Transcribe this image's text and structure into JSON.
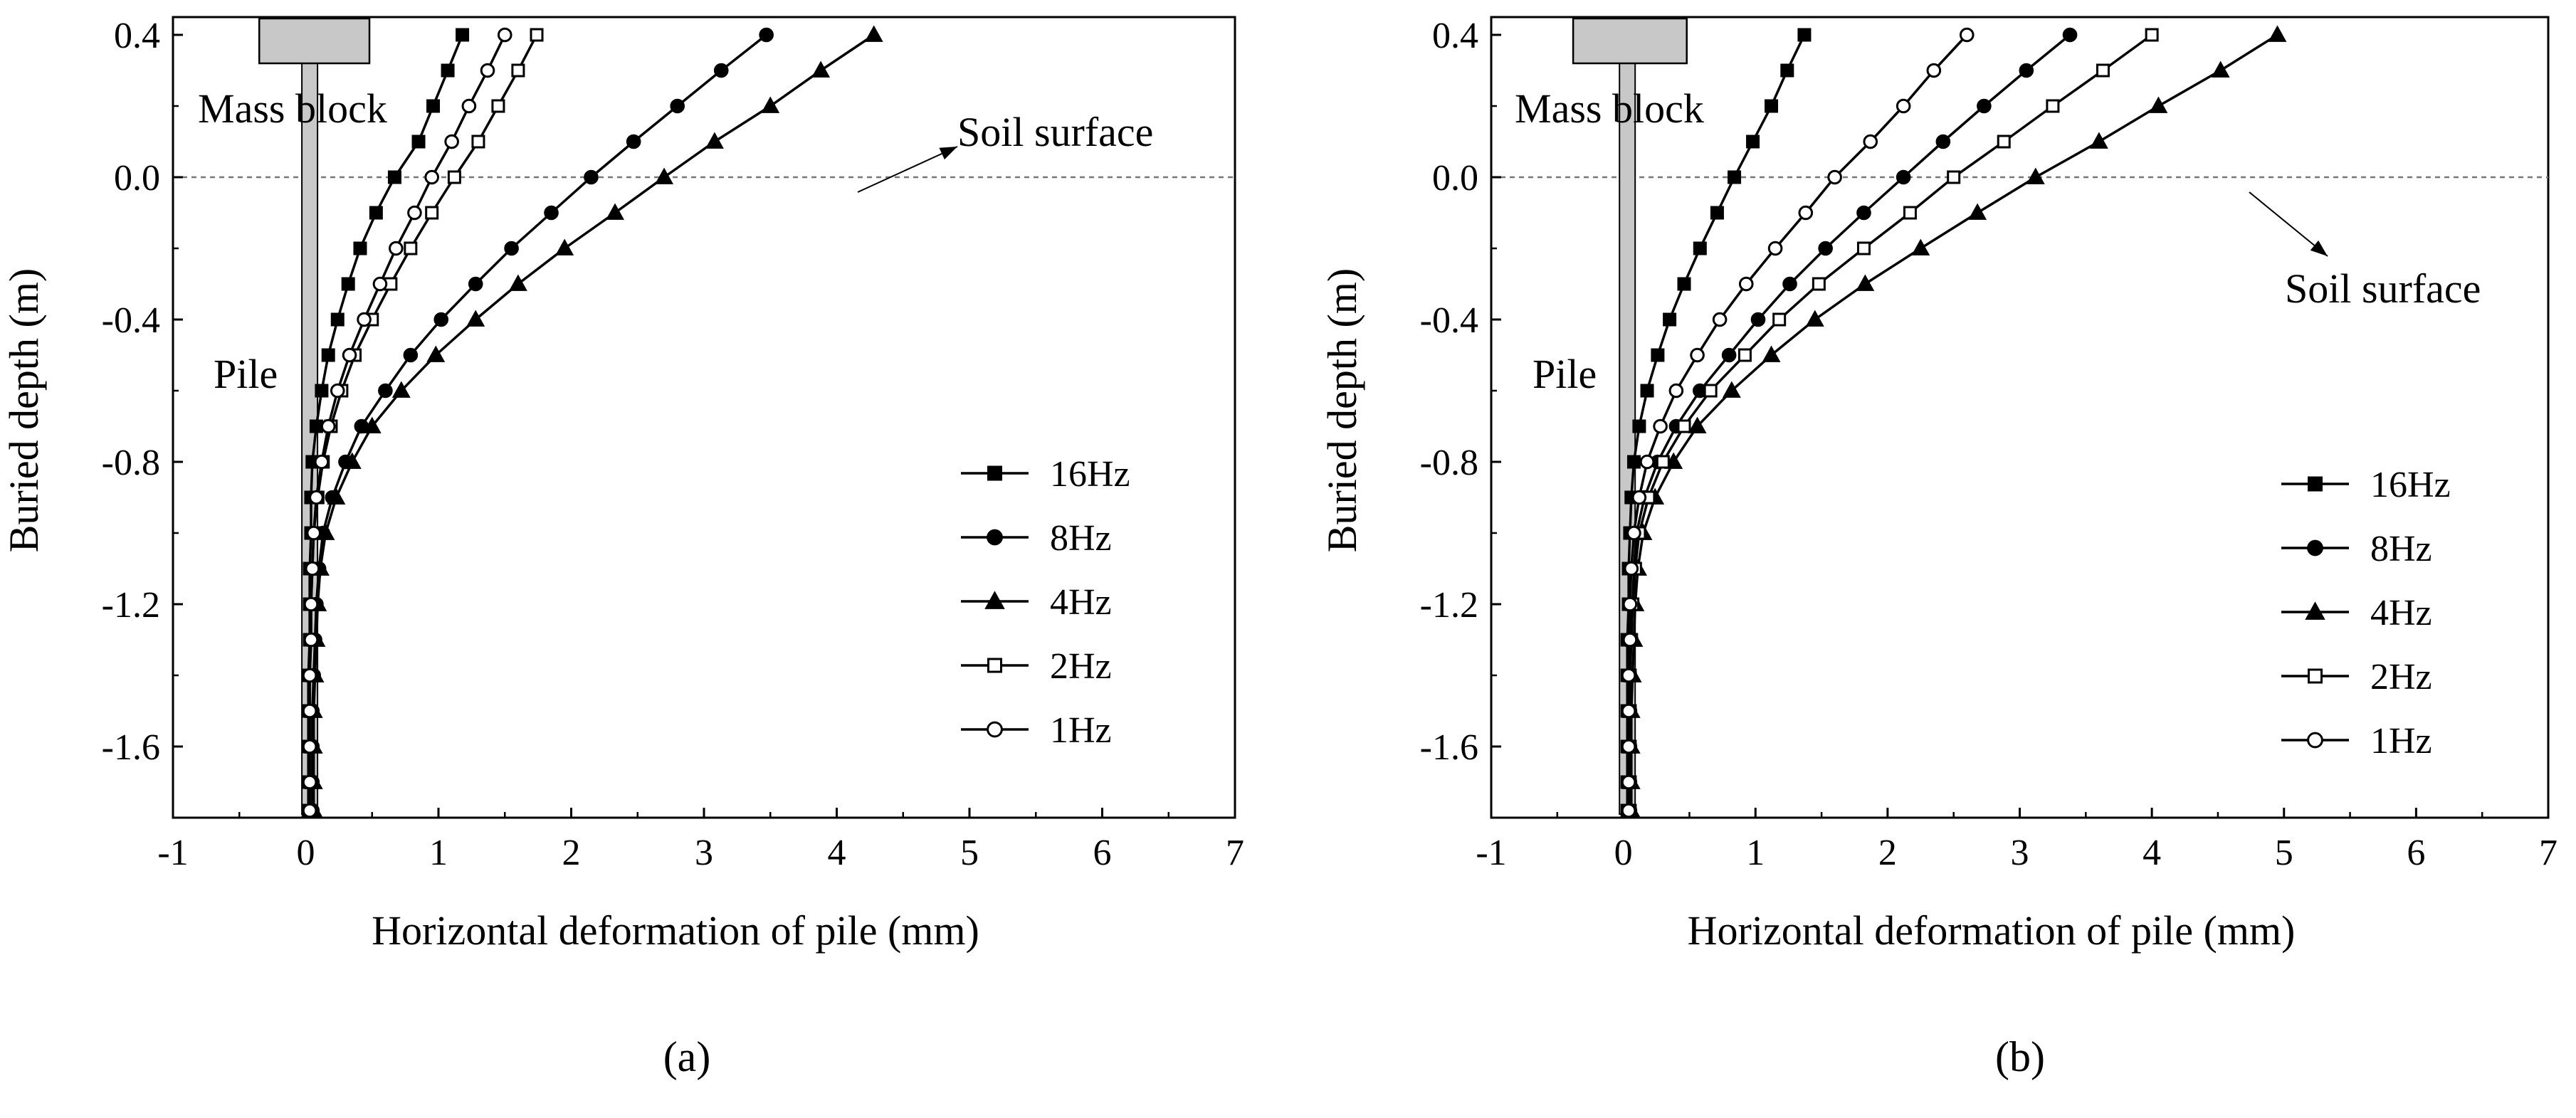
{
  "chart_data": [
    {
      "id": "a",
      "type": "line",
      "caption": "(a)",
      "xlabel": "Horizontal deformation of pile (mm)",
      "ylabel": "Buried depth (m)",
      "xlim": [
        -1,
        7
      ],
      "ylim": [
        -1.8,
        0.45
      ],
      "xticks": [
        "-1",
        "0",
        "1",
        "2",
        "3",
        "4",
        "5",
        "6",
        "7"
      ],
      "yticks": [
        "0.4",
        "0.0",
        "-0.4",
        "-0.8",
        "-1.2",
        "-1.6"
      ],
      "annotations": {
        "mass_block": "Mass block",
        "pile": "Pile",
        "soil_surface": "Soil surface"
      },
      "soil_surface_y": 0.0,
      "legend_position": "center-right",
      "series": [
        {
          "name": "16Hz",
          "marker": "square-filled",
          "x": [
            1.18,
            1.07,
            0.96,
            0.85,
            0.67,
            0.53,
            0.41,
            0.32,
            0.24,
            0.17,
            0.12,
            0.08,
            0.05,
            0.04,
            0.04,
            0.03,
            0.03,
            0.03,
            0.02,
            0.02,
            0.02,
            0.02,
            0.02
          ],
          "y": [
            0.4,
            0.3,
            0.2,
            0.1,
            0.0,
            -0.1,
            -0.2,
            -0.3,
            -0.4,
            -0.5,
            -0.6,
            -0.7,
            -0.8,
            -0.9,
            -1.0,
            -1.1,
            -1.2,
            -1.3,
            -1.4,
            -1.5,
            -1.6,
            -1.7,
            -1.78
          ]
        },
        {
          "name": "8Hz",
          "marker": "circle-filled",
          "x": [
            3.47,
            3.13,
            2.8,
            2.47,
            2.15,
            1.85,
            1.55,
            1.28,
            1.02,
            0.79,
            0.6,
            0.42,
            0.3,
            0.2,
            0.13,
            0.1,
            0.08,
            0.07,
            0.06,
            0.05,
            0.05,
            0.05,
            0.05
          ],
          "y": [
            0.4,
            0.3,
            0.2,
            0.1,
            0.0,
            -0.1,
            -0.2,
            -0.3,
            -0.4,
            -0.5,
            -0.6,
            -0.7,
            -0.8,
            -0.9,
            -1.0,
            -1.1,
            -1.2,
            -1.3,
            -1.4,
            -1.5,
            -1.6,
            -1.7,
            -1.78
          ]
        },
        {
          "name": "4Hz",
          "marker": "triangle-filled",
          "x": [
            4.28,
            3.88,
            3.5,
            3.08,
            2.7,
            2.33,
            1.95,
            1.6,
            1.28,
            0.98,
            0.72,
            0.5,
            0.35,
            0.23,
            0.15,
            0.11,
            0.09,
            0.08,
            0.07,
            0.06,
            0.06,
            0.06,
            0.06
          ],
          "y": [
            0.4,
            0.3,
            0.2,
            0.1,
            0.0,
            -0.1,
            -0.2,
            -0.3,
            -0.4,
            -0.5,
            -0.6,
            -0.7,
            -0.8,
            -0.9,
            -1.0,
            -1.1,
            -1.2,
            -1.3,
            -1.4,
            -1.5,
            -1.6,
            -1.7,
            -1.78
          ]
        },
        {
          "name": "2Hz",
          "marker": "square-open",
          "x": [
            1.74,
            1.6,
            1.45,
            1.3,
            1.12,
            0.95,
            0.79,
            0.64,
            0.5,
            0.37,
            0.27,
            0.19,
            0.13,
            0.09,
            0.06,
            0.05,
            0.04,
            0.04,
            0.03,
            0.03,
            0.03,
            0.03,
            0.03
          ],
          "y": [
            0.4,
            0.3,
            0.2,
            0.1,
            0.0,
            -0.1,
            -0.2,
            -0.3,
            -0.4,
            -0.5,
            -0.6,
            -0.7,
            -0.8,
            -0.9,
            -1.0,
            -1.1,
            -1.2,
            -1.3,
            -1.4,
            -1.5,
            -1.6,
            -1.7,
            -1.78
          ]
        },
        {
          "name": "1Hz",
          "marker": "circle-open",
          "x": [
            1.5,
            1.37,
            1.23,
            1.1,
            0.95,
            0.82,
            0.68,
            0.56,
            0.44,
            0.33,
            0.24,
            0.17,
            0.12,
            0.08,
            0.06,
            0.05,
            0.04,
            0.04,
            0.03,
            0.03,
            0.03,
            0.03,
            0.03
          ],
          "y": [
            0.4,
            0.3,
            0.2,
            0.1,
            0.0,
            -0.1,
            -0.2,
            -0.3,
            -0.4,
            -0.5,
            -0.6,
            -0.7,
            -0.8,
            -0.9,
            -1.0,
            -1.1,
            -1.2,
            -1.3,
            -1.4,
            -1.5,
            -1.6,
            -1.7,
            -1.78
          ]
        }
      ]
    },
    {
      "id": "b",
      "type": "line",
      "caption": "(b)",
      "xlabel": "Horizontal deformation of pile (mm)",
      "ylabel": "Buried depth (m)",
      "xlim": [
        -1,
        7
      ],
      "ylim": [
        -1.8,
        0.45
      ],
      "xticks": [
        "-1",
        "0",
        "1",
        "2",
        "3",
        "4",
        "5",
        "6",
        "7"
      ],
      "yticks": [
        "0.4",
        "0.0",
        "-0.4",
        "-0.8",
        "-1.2",
        "-1.6"
      ],
      "annotations": {
        "mass_block": "Mass block",
        "pile": "Pile",
        "soil_surface": "Soil surface"
      },
      "soil_surface_y": 0.0,
      "legend_position": "center-right",
      "series": [
        {
          "name": "16Hz",
          "marker": "square-filled",
          "x": [
            1.37,
            1.24,
            1.12,
            0.98,
            0.84,
            0.71,
            0.58,
            0.46,
            0.35,
            0.26,
            0.18,
            0.12,
            0.08,
            0.06,
            0.05,
            0.04,
            0.04,
            0.03,
            0.03,
            0.03,
            0.03,
            0.03,
            0.03
          ],
          "y": [
            0.4,
            0.3,
            0.2,
            0.1,
            0.0,
            -0.1,
            -0.2,
            -0.3,
            -0.4,
            -0.5,
            -0.6,
            -0.7,
            -0.8,
            -0.9,
            -1.0,
            -1.1,
            -1.2,
            -1.3,
            -1.4,
            -1.5,
            -1.6,
            -1.7,
            -1.78
          ]
        },
        {
          "name": "8Hz",
          "marker": "circle-filled",
          "x": [
            3.38,
            3.05,
            2.73,
            2.42,
            2.12,
            1.82,
            1.53,
            1.26,
            1.02,
            0.8,
            0.58,
            0.4,
            0.26,
            0.16,
            0.1,
            0.08,
            0.07,
            0.06,
            0.05,
            0.05,
            0.05,
            0.05,
            0.05
          ],
          "y": [
            0.4,
            0.3,
            0.2,
            0.1,
            0.0,
            -0.1,
            -0.2,
            -0.3,
            -0.4,
            -0.5,
            -0.6,
            -0.7,
            -0.8,
            -0.9,
            -1.0,
            -1.1,
            -1.2,
            -1.3,
            -1.4,
            -1.5,
            -1.6,
            -1.7,
            -1.78
          ]
        },
        {
          "name": "4Hz",
          "marker": "triangle-filled",
          "x": [
            4.95,
            4.52,
            4.05,
            3.6,
            3.12,
            2.68,
            2.25,
            1.83,
            1.45,
            1.12,
            0.82,
            0.56,
            0.38,
            0.24,
            0.15,
            0.11,
            0.09,
            0.08,
            0.07,
            0.06,
            0.06,
            0.06,
            0.06
          ],
          "y": [
            0.4,
            0.3,
            0.2,
            0.1,
            0.0,
            -0.1,
            -0.2,
            -0.3,
            -0.4,
            -0.5,
            -0.6,
            -0.7,
            -0.8,
            -0.9,
            -1.0,
            -1.1,
            -1.2,
            -1.3,
            -1.4,
            -1.5,
            -1.6,
            -1.7,
            -1.78
          ]
        },
        {
          "name": "2Hz",
          "marker": "square-open",
          "x": [
            4.0,
            3.63,
            3.25,
            2.88,
            2.5,
            2.17,
            1.82,
            1.48,
            1.18,
            0.92,
            0.66,
            0.46,
            0.3,
            0.19,
            0.12,
            0.09,
            0.07,
            0.06,
            0.05,
            0.05,
            0.05,
            0.05,
            0.05
          ],
          "y": [
            0.4,
            0.3,
            0.2,
            0.1,
            0.0,
            -0.1,
            -0.2,
            -0.3,
            -0.4,
            -0.5,
            -0.6,
            -0.7,
            -0.8,
            -0.9,
            -1.0,
            -1.1,
            -1.2,
            -1.3,
            -1.4,
            -1.5,
            -1.6,
            -1.7,
            -1.78
          ]
        },
        {
          "name": "1Hz",
          "marker": "circle-open",
          "x": [
            2.6,
            2.35,
            2.12,
            1.87,
            1.6,
            1.38,
            1.15,
            0.93,
            0.73,
            0.56,
            0.4,
            0.28,
            0.18,
            0.12,
            0.08,
            0.06,
            0.05,
            0.05,
            0.04,
            0.04,
            0.04,
            0.04,
            0.04
          ],
          "y": [
            0.4,
            0.3,
            0.2,
            0.1,
            0.0,
            -0.1,
            -0.2,
            -0.3,
            -0.4,
            -0.5,
            -0.6,
            -0.7,
            -0.8,
            -0.9,
            -1.0,
            -1.1,
            -1.2,
            -1.3,
            -1.4,
            -1.5,
            -1.6,
            -1.7,
            -1.78
          ]
        }
      ]
    }
  ]
}
